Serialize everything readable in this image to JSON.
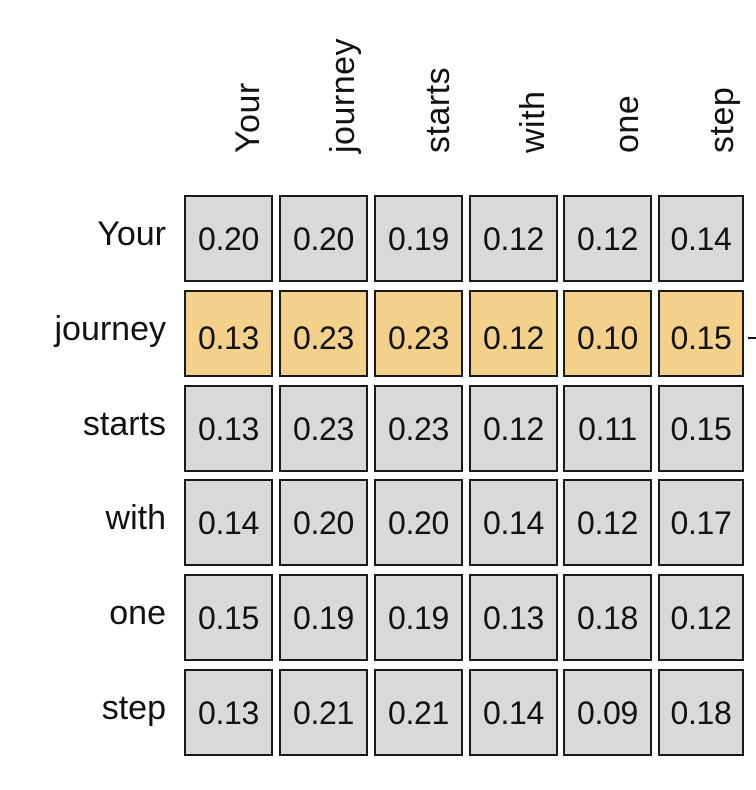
{
  "tokens": [
    "Your",
    "journey",
    "starts",
    "with",
    "one",
    "step"
  ],
  "highlight_row": 1,
  "colors": {
    "cell_background": "#d9d9d9",
    "highlight_background": "#f3d18a",
    "border": "#1a1a1a",
    "text": "#111111"
  },
  "matrix": [
    [
      "0.20",
      "0.20",
      "0.19",
      "0.12",
      "0.12",
      "0.14"
    ],
    [
      "0.13",
      "0.23",
      "0.23",
      "0.12",
      "0.10",
      "0.15"
    ],
    [
      "0.13",
      "0.23",
      "0.23",
      "0.12",
      "0.11",
      "0.15"
    ],
    [
      "0.14",
      "0.20",
      "0.20",
      "0.14",
      "0.12",
      "0.17"
    ],
    [
      "0.15",
      "0.19",
      "0.19",
      "0.13",
      "0.18",
      "0.12"
    ],
    [
      "0.13",
      "0.21",
      "0.21",
      "0.14",
      "0.09",
      "0.18"
    ]
  ]
}
